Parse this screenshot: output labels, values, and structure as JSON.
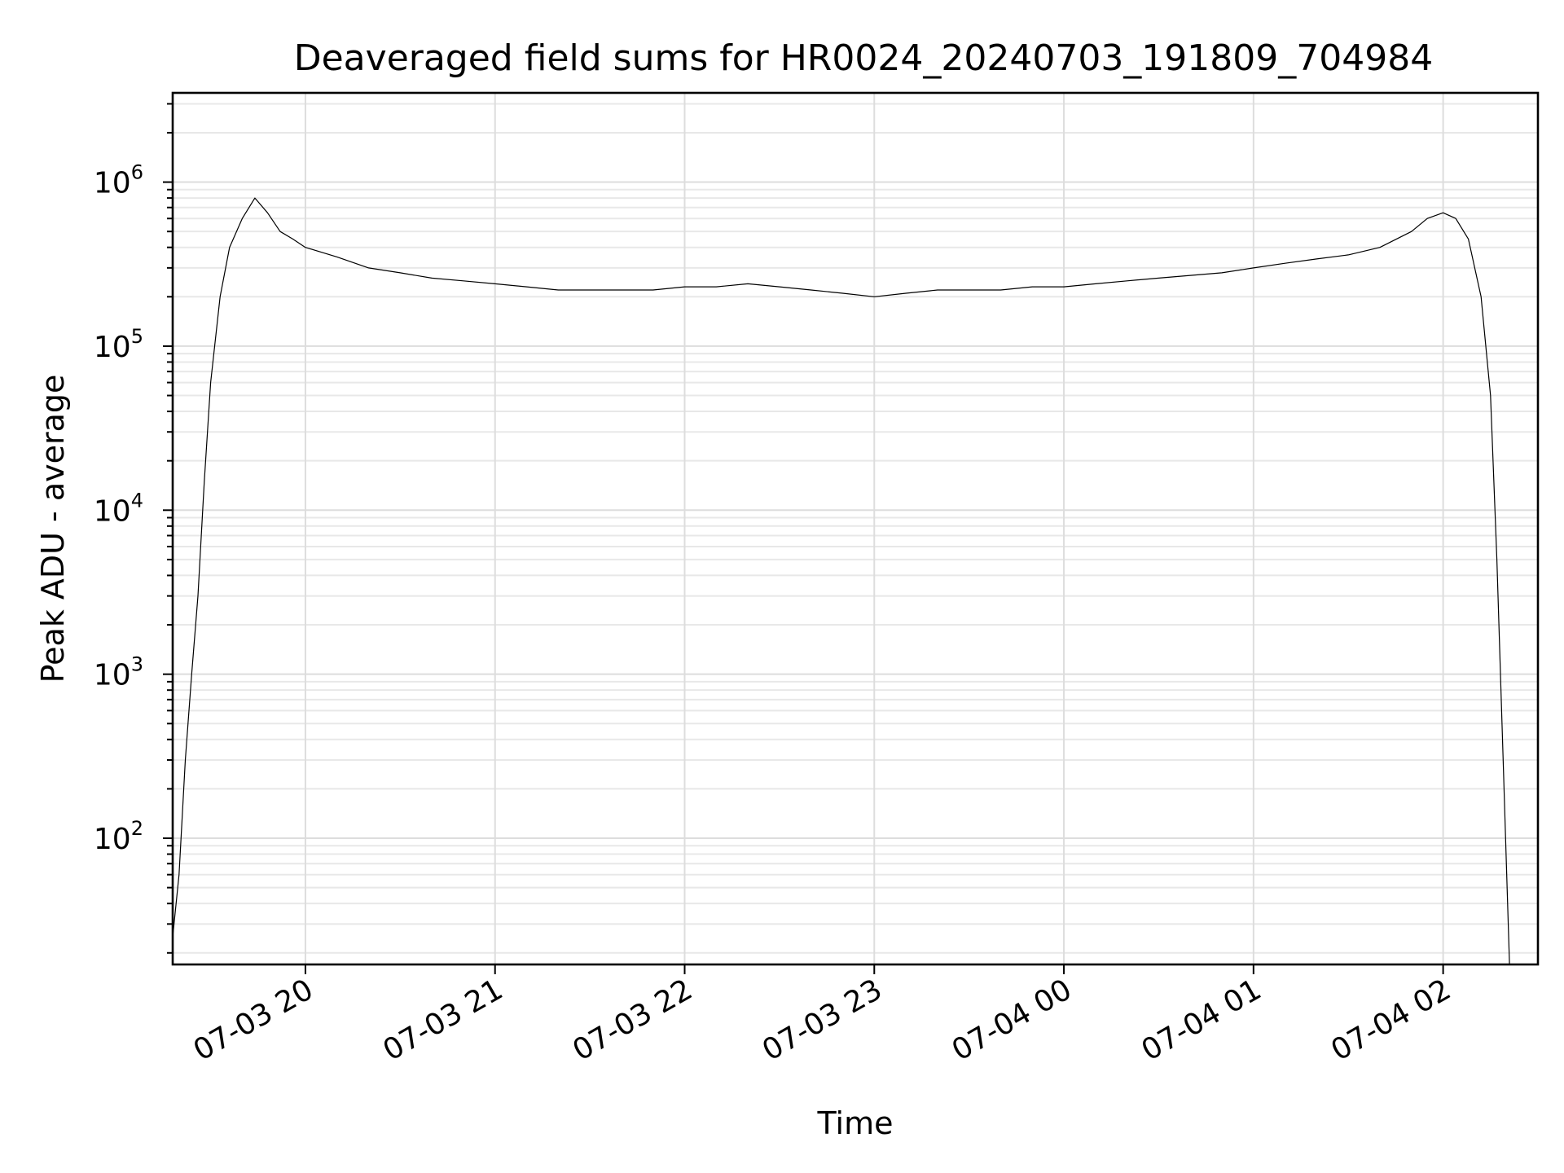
{
  "chart_data": {
    "type": "line",
    "title": "Deaveraged field sums for HR0024_20240703_191809_704984",
    "xlabel": "Time",
    "ylabel": "Peak ADU - average",
    "yscale": "log",
    "grid": true,
    "grid_minor_y": true,
    "line_color": "#000000",
    "xlim": [
      "2024-07-03 19:18",
      "2024-07-04 02:30"
    ],
    "ylim": [
      17,
      3500000
    ],
    "x_ticks": [
      {
        "value": "2024-07-03 20:00",
        "label": "07-03 20"
      },
      {
        "value": "2024-07-03 21:00",
        "label": "07-03 21"
      },
      {
        "value": "2024-07-03 22:00",
        "label": "07-03 22"
      },
      {
        "value": "2024-07-03 23:00",
        "label": "07-03 23"
      },
      {
        "value": "2024-07-04 00:00",
        "label": "07-04 00"
      },
      {
        "value": "2024-07-04 01:00",
        "label": "07-04 01"
      },
      {
        "value": "2024-07-04 02:00",
        "label": "07-04 02"
      }
    ],
    "y_ticks": [
      {
        "value": 100,
        "base": "10",
        "exp": "2"
      },
      {
        "value": 1000,
        "base": "10",
        "exp": "3"
      },
      {
        "value": 10000,
        "base": "10",
        "exp": "4"
      },
      {
        "value": 100000,
        "base": "10",
        "exp": "5"
      },
      {
        "value": 1000000,
        "base": "10",
        "exp": "6"
      }
    ],
    "series": [
      {
        "x": [
          "2024-07-03 19:18",
          "2024-07-03 19:20",
          "2024-07-03 19:22",
          "2024-07-03 19:24",
          "2024-07-03 19:26",
          "2024-07-03 19:28",
          "2024-07-03 19:30",
          "2024-07-03 19:33",
          "2024-07-03 19:36",
          "2024-07-03 19:40",
          "2024-07-03 19:44",
          "2024-07-03 19:48",
          "2024-07-03 19:52",
          "2024-07-03 19:56",
          "2024-07-03 20:00",
          "2024-07-03 20:10",
          "2024-07-03 20:20",
          "2024-07-03 20:30",
          "2024-07-03 20:40",
          "2024-07-03 20:50",
          "2024-07-03 21:00",
          "2024-07-03 21:10",
          "2024-07-03 21:20",
          "2024-07-03 21:30",
          "2024-07-03 21:40",
          "2024-07-03 21:50",
          "2024-07-03 22:00",
          "2024-07-03 22:10",
          "2024-07-03 22:20",
          "2024-07-03 22:30",
          "2024-07-03 22:40",
          "2024-07-03 22:50",
          "2024-07-03 23:00",
          "2024-07-03 23:10",
          "2024-07-03 23:20",
          "2024-07-03 23:30",
          "2024-07-03 23:40",
          "2024-07-03 23:50",
          "2024-07-04 00:00",
          "2024-07-04 00:10",
          "2024-07-04 00:20",
          "2024-07-04 00:30",
          "2024-07-04 00:40",
          "2024-07-04 00:50",
          "2024-07-04 01:00",
          "2024-07-04 01:10",
          "2024-07-04 01:20",
          "2024-07-04 01:30",
          "2024-07-04 01:40",
          "2024-07-04 01:50",
          "2024-07-04 01:55",
          "2024-07-04 02:00",
          "2024-07-04 02:04",
          "2024-07-04 02:08",
          "2024-07-04 02:12",
          "2024-07-04 02:15",
          "2024-07-04 02:17",
          "2024-07-04 02:19",
          "2024-07-04 02:21"
        ],
        "y": [
          25,
          60,
          300,
          1000,
          3000,
          15000,
          60000,
          200000,
          400000,
          600000,
          800000,
          650000,
          500000,
          450000,
          400000,
          350000,
          300000,
          280000,
          260000,
          250000,
          240000,
          230000,
          220000,
          220000,
          220000,
          220000,
          230000,
          230000,
          240000,
          230000,
          220000,
          210000,
          200000,
          210000,
          220000,
          220000,
          220000,
          230000,
          230000,
          240000,
          250000,
          260000,
          270000,
          280000,
          300000,
          320000,
          340000,
          360000,
          400000,
          500000,
          600000,
          650000,
          600000,
          450000,
          200000,
          50000,
          5000,
          300,
          17
        ]
      }
    ]
  }
}
